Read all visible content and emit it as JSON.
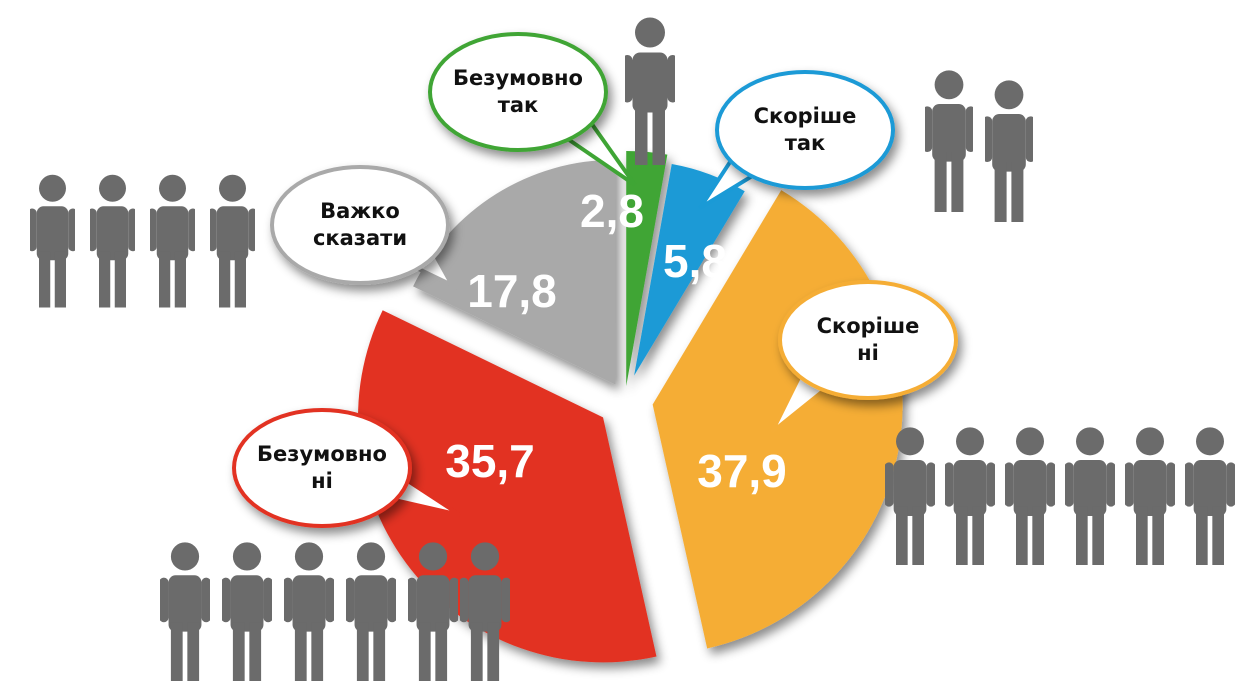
{
  "chart_data": {
    "type": "pie",
    "categories": [
      "Безумовно так",
      "Скоріше так",
      "Скоріше ні",
      "Безумовно ні",
      "Важко сказати"
    ],
    "values": [
      2.8,
      5.8,
      37.9,
      35.7,
      17.8
    ],
    "value_labels": [
      "2,8",
      "5,8",
      "37,9",
      "35,7",
      "17,8"
    ],
    "colors": [
      "#3fa535",
      "#1a9ad6",
      "#f5ad36",
      "#e23222",
      "#a9a9a9"
    ]
  }
}
